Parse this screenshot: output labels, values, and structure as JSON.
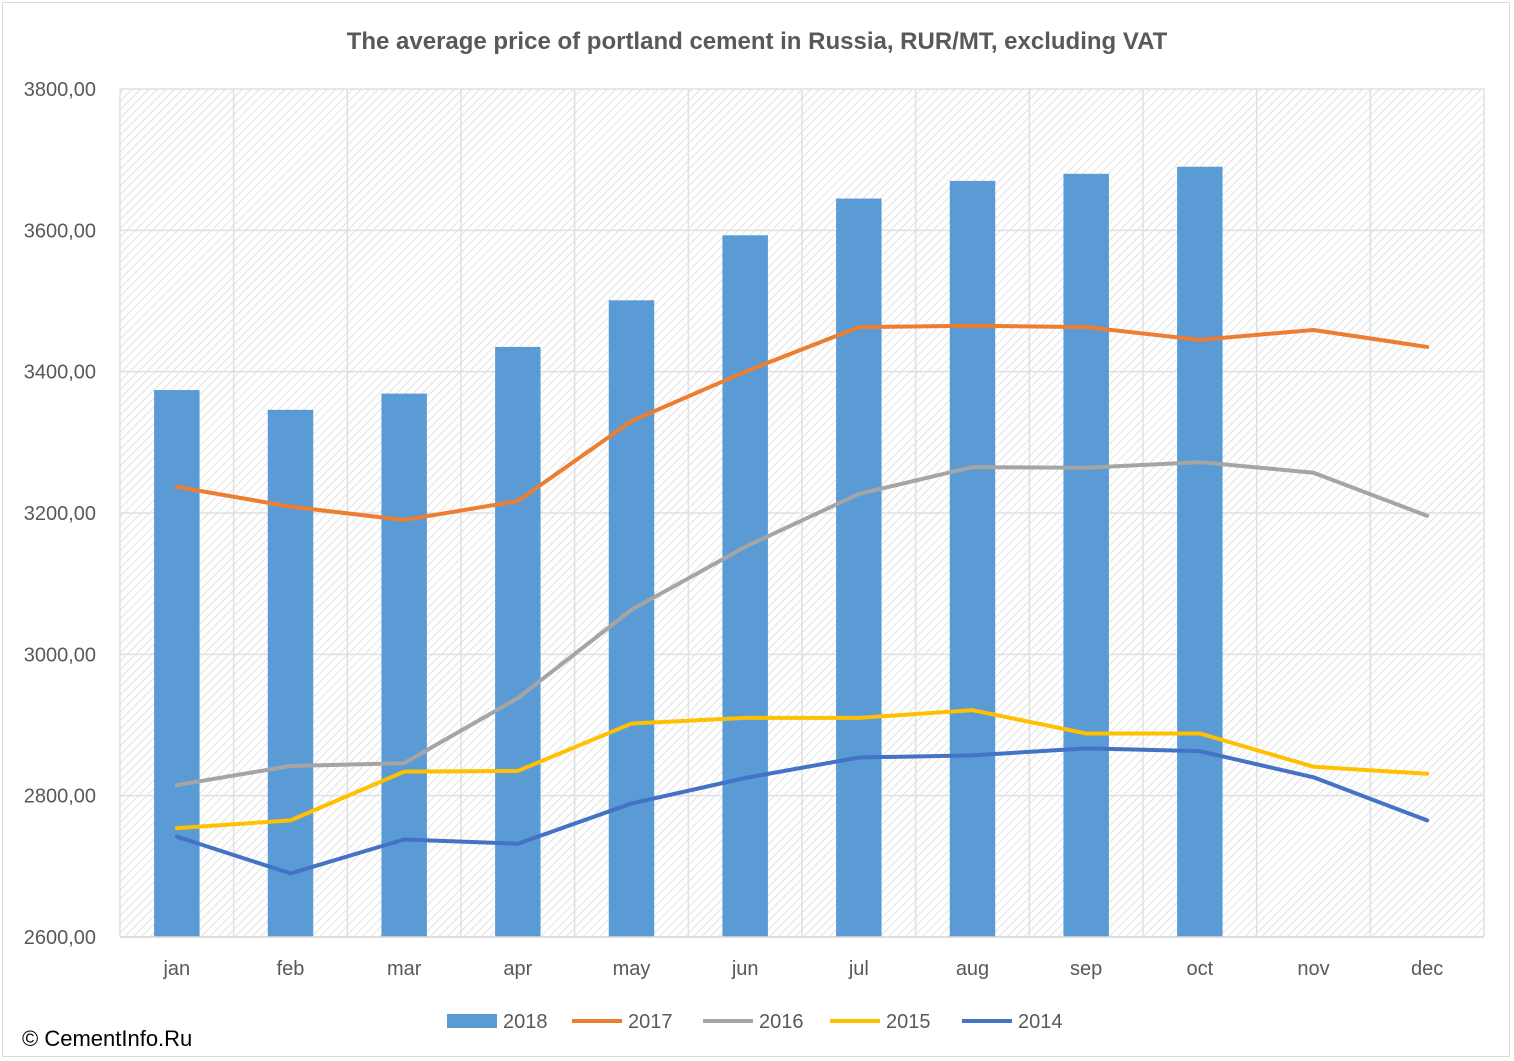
{
  "chart_data": {
    "type": "bar",
    "title": "The average price of portland cement in Russia, RUR/MT, excluding VAT",
    "categories": [
      "jan",
      "feb",
      "mar",
      "apr",
      "may",
      "jun",
      "jul",
      "aug",
      "sep",
      "oct",
      "nov",
      "dec"
    ],
    "ylim": [
      2600,
      3800
    ],
    "yticks": [
      2600,
      2800,
      3000,
      3200,
      3400,
      3600,
      3800
    ],
    "ytick_labels": [
      "2600,00",
      "2800,00",
      "3000,00",
      "3200,00",
      "3400,00",
      "3600,00",
      "3800,00"
    ],
    "grid": true,
    "legend_position": "bottom",
    "bar_series": [
      {
        "name": "2018",
        "color": "#5b9bd5",
        "values": [
          3374,
          3346,
          3369,
          3435,
          3501,
          3593,
          3645,
          3670,
          3680,
          3690,
          null,
          null
        ]
      }
    ],
    "line_series": [
      {
        "name": "2017",
        "color": "#ed7d31",
        "values": [
          3237,
          3209,
          3190,
          3217,
          3330,
          3400,
          3463,
          3465,
          3463,
          3445,
          3459,
          3435
        ]
      },
      {
        "name": "2016",
        "color": "#a5a5a5",
        "values": [
          2815,
          2842,
          2846,
          2938,
          3063,
          3152,
          3227,
          3265,
          3264,
          3272,
          3257,
          3196
        ]
      },
      {
        "name": "2015",
        "color": "#ffc000",
        "values": [
          2754,
          2765,
          2834,
          2835,
          2902,
          2910,
          2910,
          2921,
          2888,
          2888,
          2841,
          2831
        ]
      },
      {
        "name": "2014",
        "color": "#4472c4",
        "values": [
          2742,
          2690,
          2738,
          2732,
          2789,
          2825,
          2854,
          2857,
          2867,
          2863,
          2826,
          2765
        ]
      }
    ]
  },
  "legend": {
    "items": [
      {
        "label": "2018",
        "color": "#5b9bd5",
        "kind": "bar"
      },
      {
        "label": "2017",
        "color": "#ed7d31",
        "kind": "line"
      },
      {
        "label": "2016",
        "color": "#a5a5a5",
        "kind": "line"
      },
      {
        "label": "2015",
        "color": "#ffc000",
        "kind": "line"
      },
      {
        "label": "2014",
        "color": "#4472c4",
        "kind": "line"
      }
    ]
  },
  "footer": {
    "copyright": "© CementInfo.Ru"
  }
}
